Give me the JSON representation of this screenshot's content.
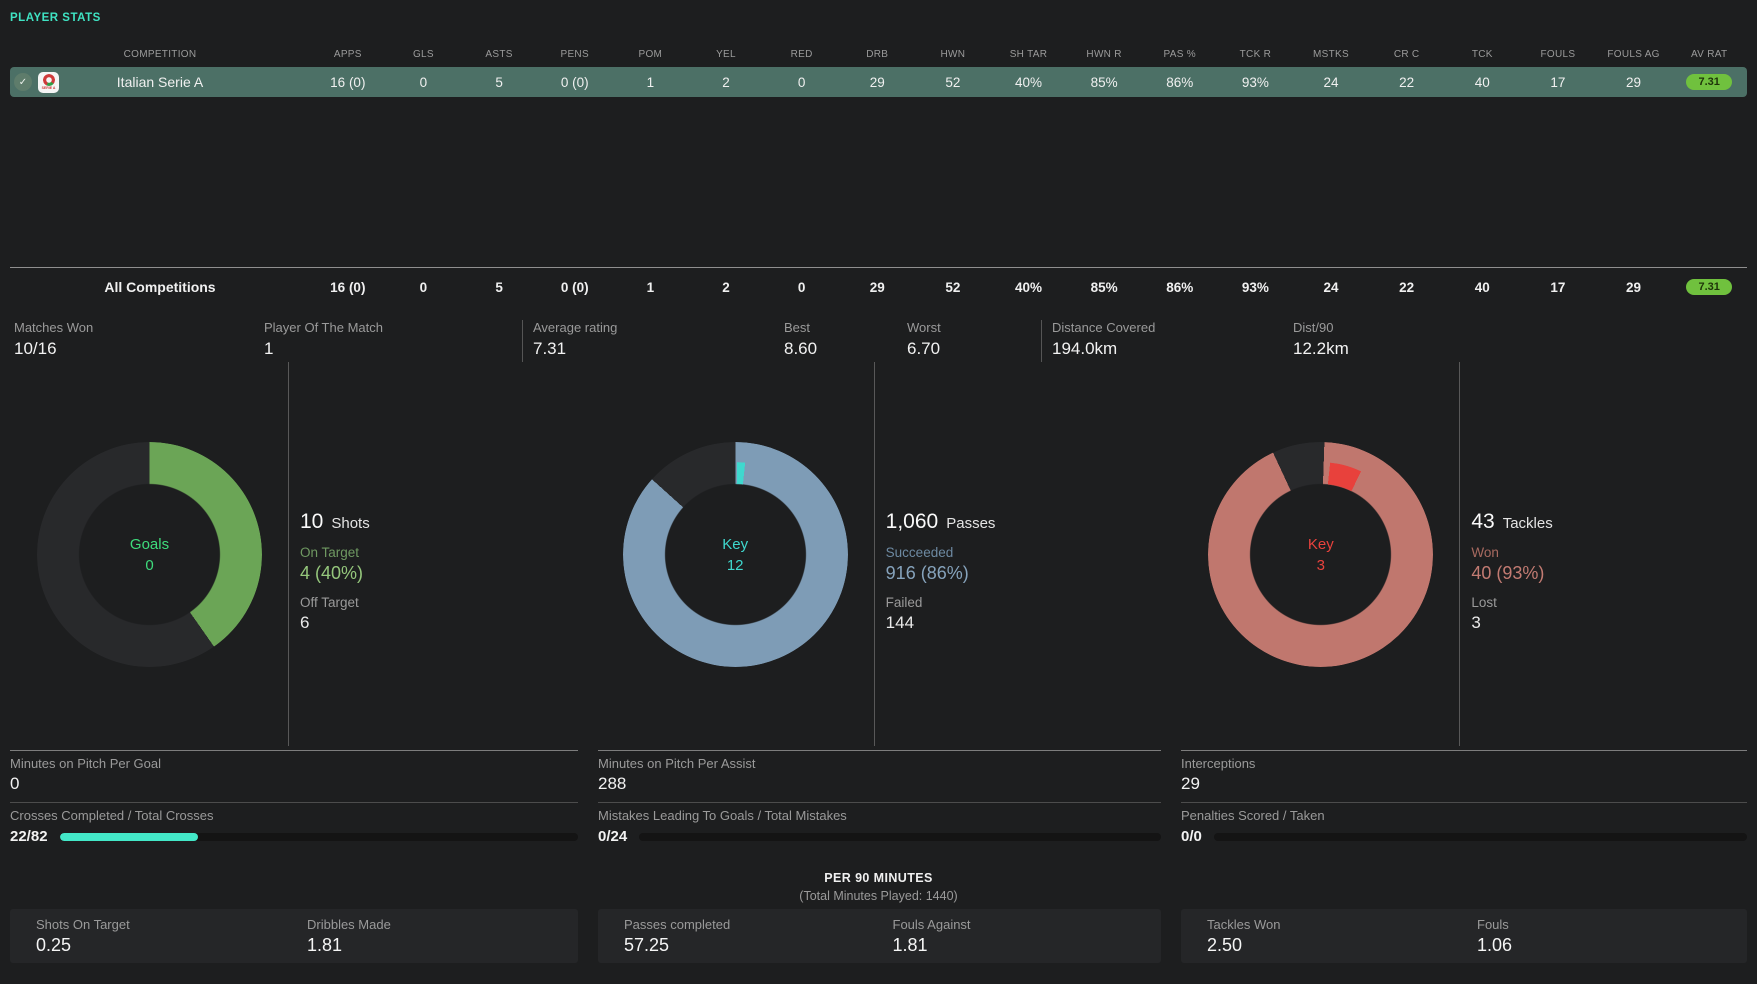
{
  "header": {
    "title": "PLAYER STATS"
  },
  "colors": {
    "background": "#1d1e1f",
    "accent_mint": "#3fe3c3",
    "selected_row": "#4c7066",
    "rating_badge": "#70c13e",
    "goal_green": "#6ba556",
    "pass_blue": "#7e9cb6",
    "key_cyan": "#3fd8ce",
    "tackle_salmon": "#c0776e",
    "key_red": "#e8413c",
    "bar_teal": "#43e8c8"
  },
  "table": {
    "headers": [
      "COMPETITION",
      "APPS",
      "GLS",
      "ASTS",
      "PENS",
      "POM",
      "YEL",
      "RED",
      "DRB",
      "HWN",
      "SH TAR",
      "HWN R",
      "PAS %",
      "TCK R",
      "MSTKS",
      "CR C",
      "TCK",
      "FOULS",
      "FOULS AG",
      "AV RAT"
    ],
    "row": {
      "competition": "Italian Serie A",
      "values": [
        "16 (0)",
        "0",
        "5",
        "0 (0)",
        "1",
        "2",
        "0",
        "29",
        "52",
        "40%",
        "85%",
        "86%",
        "93%",
        "24",
        "22",
        "40",
        "17",
        "29"
      ],
      "rating": "7.31"
    },
    "totals": {
      "competition": "All Competitions",
      "values": [
        "16 (0)",
        "0",
        "5",
        "0 (0)",
        "1",
        "2",
        "0",
        "29",
        "52",
        "40%",
        "85%",
        "86%",
        "93%",
        "24",
        "22",
        "40",
        "17",
        "29"
      ],
      "rating": "7.31"
    }
  },
  "summary": [
    {
      "label": "Matches Won",
      "value": "10/16"
    },
    {
      "label": "Player Of The Match",
      "value": "1"
    },
    {
      "label": "Average rating",
      "value": "7.31"
    },
    {
      "label": "Best",
      "value": "8.60"
    },
    {
      "label": "Worst",
      "value": "6.70"
    },
    {
      "label": "Distance Covered",
      "value": "194.0km"
    },
    {
      "label": "Dist/90",
      "value": "12.2km"
    }
  ],
  "chart_data": [
    {
      "type": "pie",
      "name": "shots-donut",
      "center_label": "Goals",
      "center_value": "0",
      "total": 10,
      "total_label": "Shots",
      "slices": [
        {
          "label": "On Target",
          "value": 4,
          "pct": "40%",
          "color": "#6ba556"
        },
        {
          "label": "Off Target",
          "value": 6,
          "pct": "60%",
          "color": "#28292b"
        }
      ],
      "render": {
        "ring_color": "#6ba556",
        "arc": [
          0,
          145
        ],
        "tick": null,
        "tick_color": null
      }
    },
    {
      "type": "pie",
      "name": "passes-donut",
      "center_label": "Key",
      "center_value": "12",
      "total": 1060,
      "total_label": "Passes",
      "slices": [
        {
          "label": "Succeeded",
          "value": 916,
          "pct": "86%",
          "color": "#7e9cb6"
        },
        {
          "label": "Failed",
          "value": 144,
          "pct": "14%",
          "color": "#28292b"
        },
        {
          "label": "Key",
          "value": 12,
          "color": "#3fd8ce"
        }
      ],
      "render": {
        "ring_color": "#7e9cb6",
        "arc": [
          0,
          312
        ],
        "tick": [
          1,
          6
        ],
        "tick_color": "#3fd8ce"
      }
    },
    {
      "type": "pie",
      "name": "tackles-donut",
      "center_label": "Key",
      "center_value": "3",
      "total": 43,
      "total_label": "Tackles",
      "slices": [
        {
          "label": "Won",
          "value": 40,
          "pct": "93%",
          "color": "#c0776e"
        },
        {
          "label": "Lost",
          "value": 3,
          "pct": "7%",
          "color": "#28292b"
        },
        {
          "label": "Key",
          "value": 3,
          "color": "#e8413c"
        }
      ],
      "render": {
        "ring_color": "#c0776e",
        "arc": [
          2,
          335
        ],
        "tick": [
          6,
          26
        ],
        "tick_color": "#e8413c"
      }
    }
  ],
  "sections": [
    {
      "big": "10",
      "big_label": "Shots",
      "rows": [
        {
          "label": "On Target",
          "value": "4 (40%)"
        },
        {
          "label": "Off Target",
          "value": "6"
        }
      ]
    },
    {
      "big": "1,060",
      "big_label": "Passes",
      "rows": [
        {
          "label": "Succeeded",
          "value": "916 (86%)"
        },
        {
          "label": "Failed",
          "value": "144"
        }
      ]
    },
    {
      "big": "43",
      "big_label": "Tackles",
      "rows": [
        {
          "label": "Won",
          "value": "40 (93%)"
        },
        {
          "label": "Lost",
          "value": "3"
        }
      ]
    }
  ],
  "details": [
    {
      "label": "Minutes on Pitch Per Goal",
      "value": "0"
    },
    {
      "label": "Crosses Completed / Total Crosses",
      "value": "22/82",
      "bar": {
        "pct": 26.8,
        "color": "#43e8c8"
      }
    },
    {
      "label": "Minutes on Pitch Per Assist",
      "value": "288"
    },
    {
      "label": "Mistakes Leading To Goals / Total Mistakes",
      "value": "0/24",
      "bar": {
        "pct": 0,
        "color": "#43e8c8"
      }
    },
    {
      "label": "Interceptions",
      "value": "29"
    },
    {
      "label": "Penalties Scored / Taken",
      "value": "0/0",
      "bar": {
        "pct": 0,
        "color": "#43e8c8"
      }
    }
  ],
  "per90": {
    "title": "PER 90 MINUTES",
    "subtitle": "(Total Minutes Played: 1440)",
    "cards": [
      [
        {
          "label": "Shots On Target",
          "value": "0.25"
        },
        {
          "label": "Dribbles Made",
          "value": "1.81"
        }
      ],
      [
        {
          "label": "Passes completed",
          "value": "57.25"
        },
        {
          "label": "Fouls Against",
          "value": "1.81"
        }
      ],
      [
        {
          "label": "Tackles Won",
          "value": "2.50"
        },
        {
          "label": "Fouls",
          "value": "1.06"
        }
      ]
    ]
  }
}
